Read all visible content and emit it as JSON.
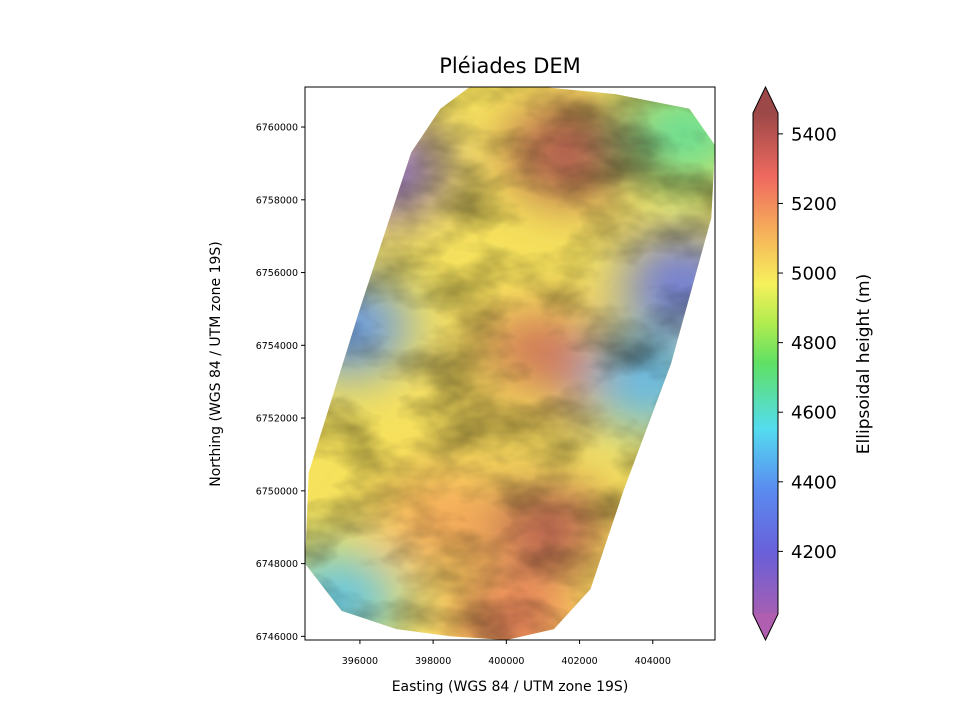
{
  "chart_data": {
    "type": "heatmap",
    "title": "Pléiades DEM",
    "xlabel": "Easting (WGS 84 / UTM zone 19S)",
    "ylabel": "Northing (WGS 84 / UTM zone 19S)",
    "xlim": [
      394500,
      405700
    ],
    "ylim": [
      6745900,
      6761100
    ],
    "xticks": [
      396000,
      398000,
      400000,
      402000,
      404000
    ],
    "xtick_labels": [
      "396000",
      "398000",
      "400000",
      "402000",
      "404000"
    ],
    "yticks": [
      6746000,
      6748000,
      6750000,
      6752000,
      6754000,
      6756000,
      6758000,
      6760000
    ],
    "ytick_labels": [
      "6746000",
      "6748000",
      "6750000",
      "6752000",
      "6754000",
      "6756000",
      "6758000",
      "6760000"
    ],
    "colorbar": {
      "label": "Ellipsoidal height (m)",
      "range": [
        4020,
        5460
      ],
      "extend": "both",
      "ticks": [
        4200,
        4400,
        4600,
        4800,
        5000,
        5200,
        5400
      ],
      "tick_labels": [
        "4200",
        "4400",
        "4600",
        "4800",
        "5000",
        "5200",
        "5400"
      ],
      "colormap": "rainbow (purple to dark red), semi-transparent over hillshade",
      "color_stops": [
        "#a55fb3",
        "#6a5fd8",
        "#5a8cf0",
        "#54dcef",
        "#5fe065",
        "#b0ec4f",
        "#f6f05c",
        "#f6b85a",
        "#f06a5f",
        "#9c4848"
      ]
    },
    "footprint_polygon": {
      "x": [
        399000,
        401000,
        403000,
        405000,
        405700,
        405600,
        404500,
        403200,
        402300,
        401300,
        400000,
        398500,
        397000,
        395500,
        394500,
        394600,
        396000,
        397400,
        398200
      ],
      "y": [
        6761100,
        6761100,
        6760900,
        6760500,
        6759500,
        6757500,
        6753500,
        6750000,
        6747300,
        6746200,
        6745900,
        6746000,
        6746200,
        6746700,
        6748000,
        6750500,
        6755000,
        6759300,
        6760500
      ]
    },
    "elevation_features": [
      {
        "x": 401700,
        "y": 6759300,
        "z": 5440
      },
      {
        "x": 400900,
        "y": 6753500,
        "z": 5380
      },
      {
        "x": 401000,
        "y": 6749000,
        "z": 5420
      },
      {
        "x": 398300,
        "y": 6749200,
        "z": 5180
      },
      {
        "x": 399800,
        "y": 6751800,
        "z": 5050
      },
      {
        "x": 400200,
        "y": 6746300,
        "z": 5260
      },
      {
        "x": 396600,
        "y": 6758800,
        "z": 4120
      },
      {
        "x": 395700,
        "y": 6754500,
        "z": 4350
      },
      {
        "x": 404800,
        "y": 6755700,
        "z": 4250
      },
      {
        "x": 403900,
        "y": 6753000,
        "z": 4420
      },
      {
        "x": 395400,
        "y": 6747000,
        "z": 4450
      },
      {
        "x": 404900,
        "y": 6759800,
        "z": 4600
      }
    ]
  }
}
